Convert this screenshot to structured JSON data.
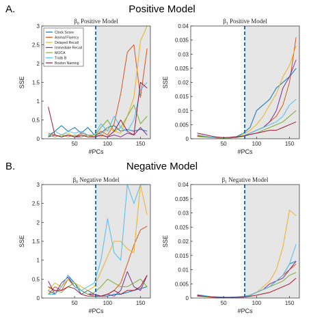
{
  "figure": {
    "section_a": {
      "letter": "A.",
      "title": "Positive Model"
    },
    "section_b": {
      "letter": "B.",
      "title": "Negative Model"
    }
  },
  "colors": {
    "Clock Score": "#0072BD",
    "Animal Fluency": "#D95319",
    "Delayed Recall": "#EDB120",
    "Immediate Recall": "#7E2F8E",
    "MOCA": "#77AC30",
    "Trails B": "#4DBEEE",
    "Boston Naming": "#A2142F",
    "shade": "#e6e6e6",
    "cutoff": "#1f6fb0"
  },
  "chart_data": [
    {
      "type": "line",
      "title": "β0 Positive Model",
      "title_beta": "β",
      "title_sub": "0",
      "title_rest": " Positive Model",
      "xlabel": "#PCs",
      "ylabel": "SSE",
      "xlim": [
        0,
        165
      ],
      "ylim": [
        0,
        3
      ],
      "xticks": [
        50,
        100,
        150
      ],
      "yticks": [
        0,
        0.5,
        1,
        1.5,
        2,
        2.5,
        3
      ],
      "ytick_labels": [
        "0",
        "0.5",
        "1",
        "1.5",
        "2",
        "2.5",
        "3"
      ],
      "cutoff_x": 82,
      "shaded_from_x": 82,
      "legend": "top-left",
      "legend_entries": [
        "Clock Score",
        "Animal Fluency",
        "Delayed Recall",
        "Immediate Recall",
        "MOCA",
        "Trails B",
        "Boston Naming"
      ],
      "x": [
        10,
        20,
        30,
        40,
        50,
        60,
        70,
        80,
        90,
        100,
        110,
        120,
        130,
        140,
        150,
        160
      ],
      "series": [
        {
          "name": "Clock Score",
          "values": [
            0.05,
            0.2,
            0.35,
            0.2,
            0.3,
            0.15,
            0.3,
            0.1,
            0.15,
            0.3,
            0.35,
            0.2,
            0.25,
            0.2,
            0.25,
            0.2
          ]
        },
        {
          "name": "Animal Fluency",
          "values": [
            0.15,
            0.1,
            0.05,
            0.1,
            0.05,
            0.15,
            0.1,
            0.05,
            0.2,
            0.1,
            0.4,
            1.2,
            2.3,
            2.5,
            1.1,
            2.4
          ]
        },
        {
          "name": "Delayed Recall",
          "values": [
            0.1,
            0.2,
            0.1,
            0.15,
            0.05,
            0.1,
            0.05,
            0.1,
            0.05,
            0.3,
            0.2,
            0.15,
            0.6,
            1.1,
            2.6,
            3.0
          ]
        },
        {
          "name": "Immediate Recall",
          "values": [
            0.05,
            0.1,
            0.05,
            0.1,
            0.05,
            0.05,
            0.1,
            0.05,
            0.1,
            0.05,
            0.1,
            0.05,
            0.15,
            0.1,
            0.3,
            0.1
          ]
        },
        {
          "name": "MOCA",
          "values": [
            0.1,
            0.05,
            0.1,
            0.05,
            0.1,
            0.05,
            0.1,
            0.05,
            0.3,
            0.5,
            0.2,
            0.3,
            0.6,
            0.9,
            0.4,
            0.6
          ]
        },
        {
          "name": "Trails B",
          "values": [
            0.1,
            0.2,
            0.1,
            0.2,
            0.15,
            0.2,
            0.1,
            0.1,
            0.4,
            0.2,
            0.6,
            0.3,
            0.2,
            0.5,
            1.3,
            1.5
          ]
        },
        {
          "name": "Boston Naming",
          "values": [
            0.85,
            0.1,
            0.05,
            0.1,
            0.05,
            0.1,
            0.05,
            0.05,
            0.1,
            0.05,
            0.2,
            0.5,
            0.2,
            0.1,
            1.5,
            1.35
          ]
        }
      ]
    },
    {
      "type": "line",
      "title": "β1 Positive Model",
      "title_beta": "β",
      "title_sub": "1",
      "title_rest": " Positive Model",
      "xlabel": "#PCs",
      "ylabel": "SSE",
      "xlim": [
        0,
        165
      ],
      "ylim": [
        0,
        0.04
      ],
      "xticks": [
        50,
        100,
        150
      ],
      "yticks": [
        0,
        0.005,
        0.01,
        0.015,
        0.02,
        0.025,
        0.03,
        0.035,
        0.04
      ],
      "ytick_labels": [
        "0",
        "0.005",
        "0.01",
        "0.015",
        "0.02",
        "0.025",
        "0.03",
        "0.035",
        "0.04"
      ],
      "cutoff_x": 82,
      "shaded_from_x": 82,
      "x": [
        10,
        20,
        30,
        40,
        50,
        60,
        70,
        80,
        90,
        100,
        110,
        120,
        130,
        140,
        150,
        160
      ],
      "series": [
        {
          "name": "Clock Score",
          "values": [
            0.001,
            0.0008,
            0.0005,
            0.0004,
            0.0003,
            0.0005,
            0.0008,
            0.002,
            0.004,
            0.01,
            0.012,
            0.014,
            0.018,
            0.02,
            0.022,
            0.025
          ]
        },
        {
          "name": "Animal Fluency",
          "values": [
            0.001,
            0.0008,
            0.0005,
            0.0003,
            0.0002,
            0.0003,
            0.0005,
            0.001,
            0.002,
            0.003,
            0.004,
            0.006,
            0.008,
            0.012,
            0.02,
            0.036
          ]
        },
        {
          "name": "Delayed Recall",
          "values": [
            0.0012,
            0.0009,
            0.0006,
            0.0004,
            0.0003,
            0.0004,
            0.0006,
            0.0015,
            0.003,
            0.005,
            0.008,
            0.012,
            0.016,
            0.022,
            0.026,
            0.033
          ]
        },
        {
          "name": "Immediate Recall",
          "values": [
            0.001,
            0.0007,
            0.0005,
            0.0003,
            0.0002,
            0.0003,
            0.0004,
            0.001,
            0.002,
            0.003,
            0.004,
            0.006,
            0.01,
            0.018,
            0.022,
            0.028
          ]
        },
        {
          "name": "MOCA",
          "values": [
            0.0008,
            0.0006,
            0.0004,
            0.0003,
            0.0002,
            0.0003,
            0.0004,
            0.0008,
            0.0015,
            0.002,
            0.003,
            0.004,
            0.005,
            0.006,
            0.008,
            0.01
          ]
        },
        {
          "name": "Trails B",
          "values": [
            0.0015,
            0.001,
            0.0006,
            0.0004,
            0.0003,
            0.0004,
            0.0006,
            0.001,
            0.002,
            0.003,
            0.004,
            0.005,
            0.006,
            0.008,
            0.012,
            0.014
          ]
        },
        {
          "name": "Boston Naming",
          "values": [
            0.002,
            0.0015,
            0.001,
            0.0006,
            0.0004,
            0.0005,
            0.0007,
            0.001,
            0.0015,
            0.002,
            0.0025,
            0.003,
            0.003,
            0.004,
            0.005,
            0.006
          ]
        }
      ]
    },
    {
      "type": "line",
      "title": "β0 Negative Model",
      "title_beta": "β",
      "title_sub": "0",
      "title_rest": " Negative Model",
      "xlabel": "#PCs",
      "ylabel": "SSE",
      "xlim": [
        0,
        165
      ],
      "ylim": [
        0,
        3
      ],
      "xticks": [
        50,
        100,
        150
      ],
      "yticks": [
        0,
        0.5,
        1,
        1.5,
        2,
        2.5,
        3
      ],
      "ytick_labels": [
        "0",
        "0.5",
        "1",
        "1.5",
        "2",
        "2.5",
        "3"
      ],
      "cutoff_x": 82,
      "shaded_from_x": 82,
      "x": [
        10,
        20,
        30,
        40,
        50,
        60,
        70,
        80,
        90,
        100,
        110,
        120,
        130,
        140,
        150,
        160
      ],
      "series": [
        {
          "name": "Clock Score",
          "values": [
            0.2,
            0.1,
            0.3,
            0.6,
            0.4,
            0.1,
            0.2,
            0.1,
            0.05,
            0.05,
            0.1,
            0.1,
            0.15,
            0.2,
            0.25,
            0.3
          ]
        },
        {
          "name": "Animal Fluency",
          "values": [
            0.1,
            0.3,
            0.2,
            0.5,
            0.3,
            0.2,
            0.1,
            0.05,
            0.05,
            0.1,
            0.2,
            0.4,
            0.9,
            1.4,
            1.8,
            1.9
          ]
        },
        {
          "name": "Delayed Recall",
          "values": [
            0.2,
            0.4,
            0.3,
            0.5,
            0.4,
            0.3,
            0.2,
            0.3,
            0.7,
            1.1,
            1.5,
            1.5,
            1.3,
            1.2,
            3.0,
            2.2
          ]
        },
        {
          "name": "Immediate Recall",
          "values": [
            0.45,
            0.1,
            0.4,
            0.55,
            0.3,
            0.2,
            0.1,
            0.1,
            0.05,
            0.1,
            0.05,
            0.2,
            0.7,
            0.3,
            0.2,
            0.6
          ]
        },
        {
          "name": "MOCA",
          "values": [
            0.1,
            0.2,
            0.15,
            0.3,
            0.4,
            0.2,
            0.1,
            0.15,
            0.3,
            0.5,
            0.4,
            0.3,
            0.3,
            0.4,
            0.5,
            0.3
          ]
        },
        {
          "name": "Trails B",
          "values": [
            0.1,
            0.1,
            0.3,
            0.6,
            0.3,
            0.2,
            0.3,
            0.4,
            1.0,
            2.1,
            1.2,
            1.0,
            3.0,
            2.5,
            3.0,
            3.0
          ]
        },
        {
          "name": "Boston Naming",
          "values": [
            0.3,
            0.2,
            0.2,
            0.3,
            0.25,
            0.1,
            0.05,
            0.05,
            0.05,
            0.1,
            0.2,
            0.1,
            0.2,
            0.2,
            0.3,
            0.6
          ]
        }
      ]
    },
    {
      "type": "line",
      "title": "β1 Negative Model",
      "title_beta": "β",
      "title_sub": "1",
      "title_rest": " Negative Model",
      "xlabel": "#PCs",
      "ylabel": "SSE",
      "xlim": [
        0,
        165
      ],
      "ylim": [
        0,
        0.04
      ],
      "xticks": [
        50,
        100,
        150
      ],
      "yticks": [
        0,
        0.005,
        0.01,
        0.015,
        0.02,
        0.025,
        0.03,
        0.035,
        0.04
      ],
      "ytick_labels": [
        "0",
        "0.005",
        "0.01",
        "0.015",
        "0.02",
        "0.025",
        "0.03",
        "0.035",
        "0.04"
      ],
      "cutoff_x": 82,
      "shaded_from_x": 82,
      "x": [
        10,
        20,
        30,
        40,
        50,
        60,
        70,
        80,
        90,
        100,
        110,
        120,
        130,
        140,
        150,
        160
      ],
      "series": [
        {
          "name": "Clock Score",
          "values": [
            0.001,
            0.0008,
            0.0005,
            0.0004,
            0.0003,
            0.0003,
            0.0004,
            0.0006,
            0.001,
            0.002,
            0.003,
            0.004,
            0.006,
            0.008,
            0.012,
            0.013
          ]
        },
        {
          "name": "Animal Fluency",
          "values": [
            0.0008,
            0.0006,
            0.0004,
            0.0003,
            0.0002,
            0.0002,
            0.0003,
            0.0004,
            0.001,
            0.002,
            0.003,
            0.004,
            0.006,
            0.008,
            0.01,
            0.012
          ]
        },
        {
          "name": "Delayed Recall",
          "values": [
            0.0012,
            0.0008,
            0.0005,
            0.0003,
            0.0002,
            0.0002,
            0.0003,
            0.0005,
            0.001,
            0.002,
            0.004,
            0.006,
            0.01,
            0.018,
            0.031,
            0.029
          ]
        },
        {
          "name": "Immediate Recall",
          "values": [
            0.001,
            0.0007,
            0.0004,
            0.0003,
            0.0002,
            0.0002,
            0.0003,
            0.0004,
            0.001,
            0.002,
            0.003,
            0.005,
            0.006,
            0.007,
            0.01,
            0.013
          ]
        },
        {
          "name": "MOCA",
          "values": [
            0.0006,
            0.0005,
            0.0003,
            0.0002,
            0.0002,
            0.0002,
            0.0002,
            0.0003,
            0.0008,
            0.002,
            0.003,
            0.004,
            0.005,
            0.006,
            0.008,
            0.009
          ]
        },
        {
          "name": "Trails B",
          "values": [
            0.0012,
            0.0009,
            0.0005,
            0.0003,
            0.0002,
            0.0002,
            0.0003,
            0.0005,
            0.001,
            0.002,
            0.003,
            0.004,
            0.006,
            0.008,
            0.012,
            0.019
          ]
        },
        {
          "name": "Boston Naming",
          "values": [
            0.0008,
            0.0006,
            0.0004,
            0.0002,
            0.0002,
            0.0002,
            0.0002,
            0.0003,
            0.0006,
            0.001,
            0.0015,
            0.002,
            0.003,
            0.004,
            0.005,
            0.007
          ]
        }
      ]
    }
  ]
}
